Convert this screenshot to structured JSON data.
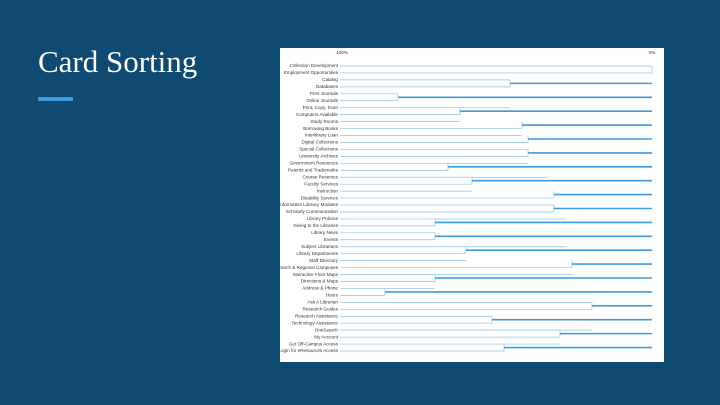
{
  "slide": {
    "title": "Card Sorting"
  },
  "dendrogram": {
    "scale_left": "100%",
    "scale_right": "0%",
    "labels": [
      "Collection Development",
      "Employment Opportunities",
      "Catalog",
      "Databases",
      "Print Journals",
      "Online Journals",
      "Print, Copy, Scan",
      "Computers Available",
      "Study Rooms",
      "Borrowing Books",
      "Interlibrary Loan",
      "Digital Collections",
      "Special Collections",
      "University Archives",
      "Government Resources",
      "Patents and Trademarks",
      "Course Reserves",
      "Faculty Services",
      "Instruction",
      "Disability Services",
      "Information Literacy Modules",
      "Scholarly Communication",
      "Library Policies",
      "Giving to the Libraries",
      "Library News",
      "Events",
      "Subject Librarians",
      "Library Departments",
      "Staff Directory",
      "Branch & Regional Campuses",
      "Interactive Floor Maps",
      "Directions & Maps",
      "Address & Phone",
      "Hours",
      "Ask A Librarian",
      "Research Guides",
      "Research Assistance",
      "Technology Assistance",
      "OneSearch",
      "My Account",
      "Get Off-Campus Access",
      "Login for eResources Access"
    ]
  }
}
